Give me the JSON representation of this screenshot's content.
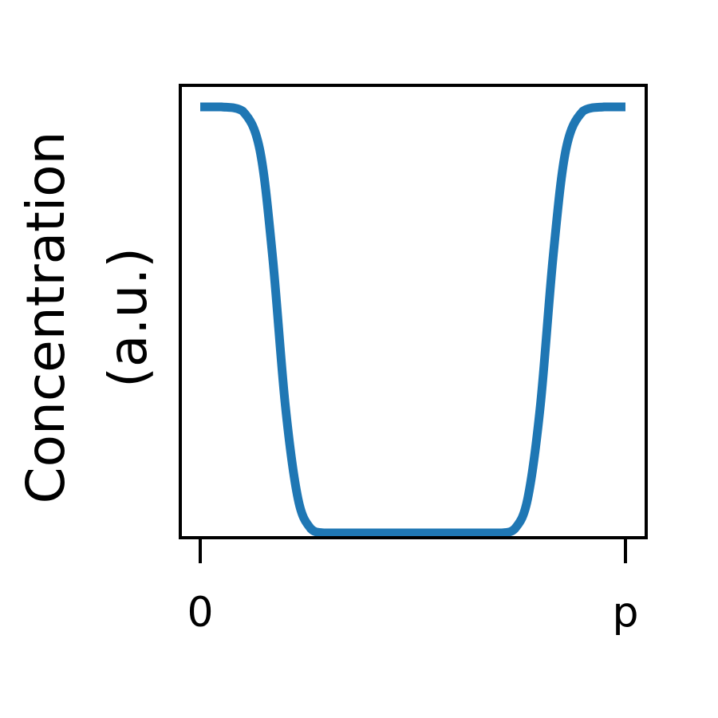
{
  "chart_data": {
    "type": "line",
    "title": "",
    "xlabel": "",
    "ylabel_lines": [
      "Concentration",
      "(a.u.)"
    ],
    "x_ticks": [
      "0",
      "p"
    ],
    "xlim": [
      0,
      1
    ],
    "ylim": [
      0,
      1
    ],
    "grid": false,
    "series": [
      {
        "color": "#1f77b4",
        "x": [
          0.0,
          0.05,
          0.1,
          0.14,
          0.17,
          0.2,
          0.23,
          0.26,
          0.29,
          0.33,
          0.4,
          0.5,
          0.6,
          0.67,
          0.71,
          0.74,
          0.77,
          0.8,
          0.83,
          0.86,
          0.9,
          0.95,
          1.0
        ],
        "y": [
          1.0,
          1.0,
          0.99,
          0.9,
          0.65,
          0.3,
          0.08,
          0.01,
          0.0,
          0.0,
          0.0,
          0.0,
          0.0,
          0.0,
          0.0,
          0.01,
          0.08,
          0.3,
          0.65,
          0.9,
          0.99,
          1.0,
          1.0
        ]
      }
    ]
  }
}
